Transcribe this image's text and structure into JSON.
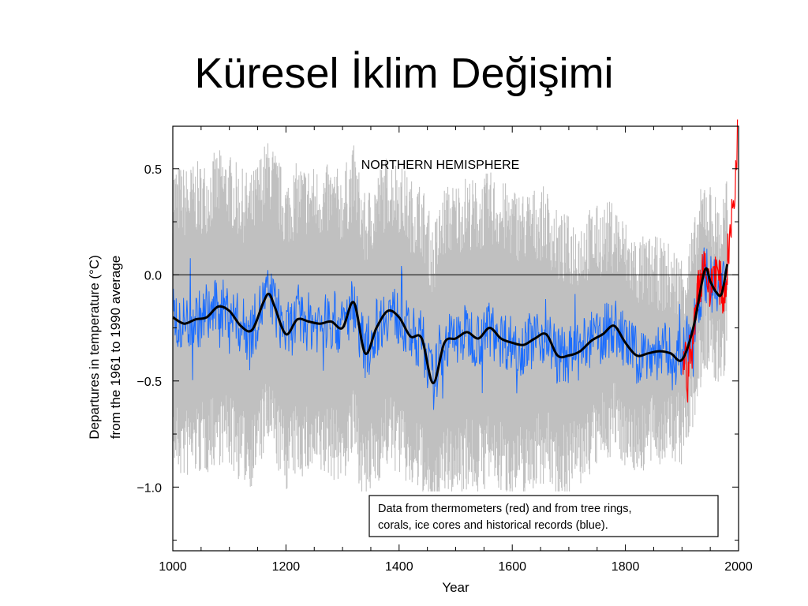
{
  "slide": {
    "title": "Küresel İklim Değişimi"
  },
  "chart_data": {
    "type": "line",
    "title": "NORTHERN HEMISPHERE",
    "xlabel": "Year",
    "ylabel": [
      "Departures in temperature (°C)",
      "from the 1961 to 1990 average"
    ],
    "xlim": [
      1000,
      2000
    ],
    "ylim": [
      -1.3,
      0.7
    ],
    "x_ticks": [
      1000,
      1200,
      1400,
      1600,
      1800,
      2000
    ],
    "y_ticks": [
      0.5,
      0.0,
      -0.5,
      -1.0
    ],
    "y_tick_labels": [
      "0.5",
      "0.0",
      "−0.5",
      "−1.0"
    ],
    "legend": {
      "lines": [
        "Data from thermometers (red) and from tree rings,",
        "corals, ice cores and historical records (blue)."
      ],
      "position": "bottom-right"
    },
    "colors": {
      "uncertainty": "#c0c0c0",
      "proxy": "#1a6cff",
      "instrumental": "#ff0000",
      "smoothed": "#000000"
    },
    "series": [
      {
        "role": "smoothed-proxy",
        "x": [
          1000,
          1020,
          1040,
          1060,
          1080,
          1100,
          1120,
          1140,
          1160,
          1170,
          1180,
          1200,
          1220,
          1240,
          1260,
          1280,
          1300,
          1320,
          1340,
          1360,
          1380,
          1400,
          1420,
          1440,
          1460,
          1480,
          1500,
          1520,
          1540,
          1560,
          1580,
          1600,
          1620,
          1640,
          1660,
          1680,
          1700,
          1720,
          1740,
          1760,
          1780,
          1800,
          1820,
          1840,
          1860,
          1880,
          1900,
          1920,
          1940,
          1950,
          1960,
          1970,
          1980
        ],
        "values": [
          -0.2,
          -0.23,
          -0.21,
          -0.2,
          -0.15,
          -0.17,
          -0.24,
          -0.26,
          -0.13,
          -0.09,
          -0.15,
          -0.28,
          -0.21,
          -0.22,
          -0.23,
          -0.22,
          -0.25,
          -0.13,
          -0.37,
          -0.25,
          -0.17,
          -0.2,
          -0.29,
          -0.3,
          -0.51,
          -0.32,
          -0.3,
          -0.27,
          -0.3,
          -0.25,
          -0.3,
          -0.32,
          -0.33,
          -0.3,
          -0.28,
          -0.38,
          -0.38,
          -0.36,
          -0.31,
          -0.28,
          -0.24,
          -0.32,
          -0.38,
          -0.37,
          -0.36,
          -0.37,
          -0.4,
          -0.25,
          0.02,
          -0.03,
          -0.08,
          -0.09,
          0.05
        ]
      },
      {
        "role": "instrumental",
        "x": [
          1902,
          1906,
          1910,
          1914,
          1918,
          1922,
          1926,
          1930,
          1934,
          1938,
          1942,
          1946,
          1950,
          1954,
          1958,
          1962,
          1966,
          1970,
          1974,
          1978,
          1982,
          1986,
          1990,
          1994,
          1998
        ],
        "values": [
          -0.42,
          -0.38,
          -0.5,
          -0.35,
          -0.4,
          -0.2,
          -0.1,
          -0.05,
          -0.02,
          0.08,
          0.05,
          -0.05,
          -0.1,
          0.0,
          0.05,
          0.0,
          -0.03,
          -0.06,
          -0.12,
          -0.02,
          0.12,
          0.2,
          0.32,
          0.4,
          0.68
        ]
      }
    ]
  }
}
